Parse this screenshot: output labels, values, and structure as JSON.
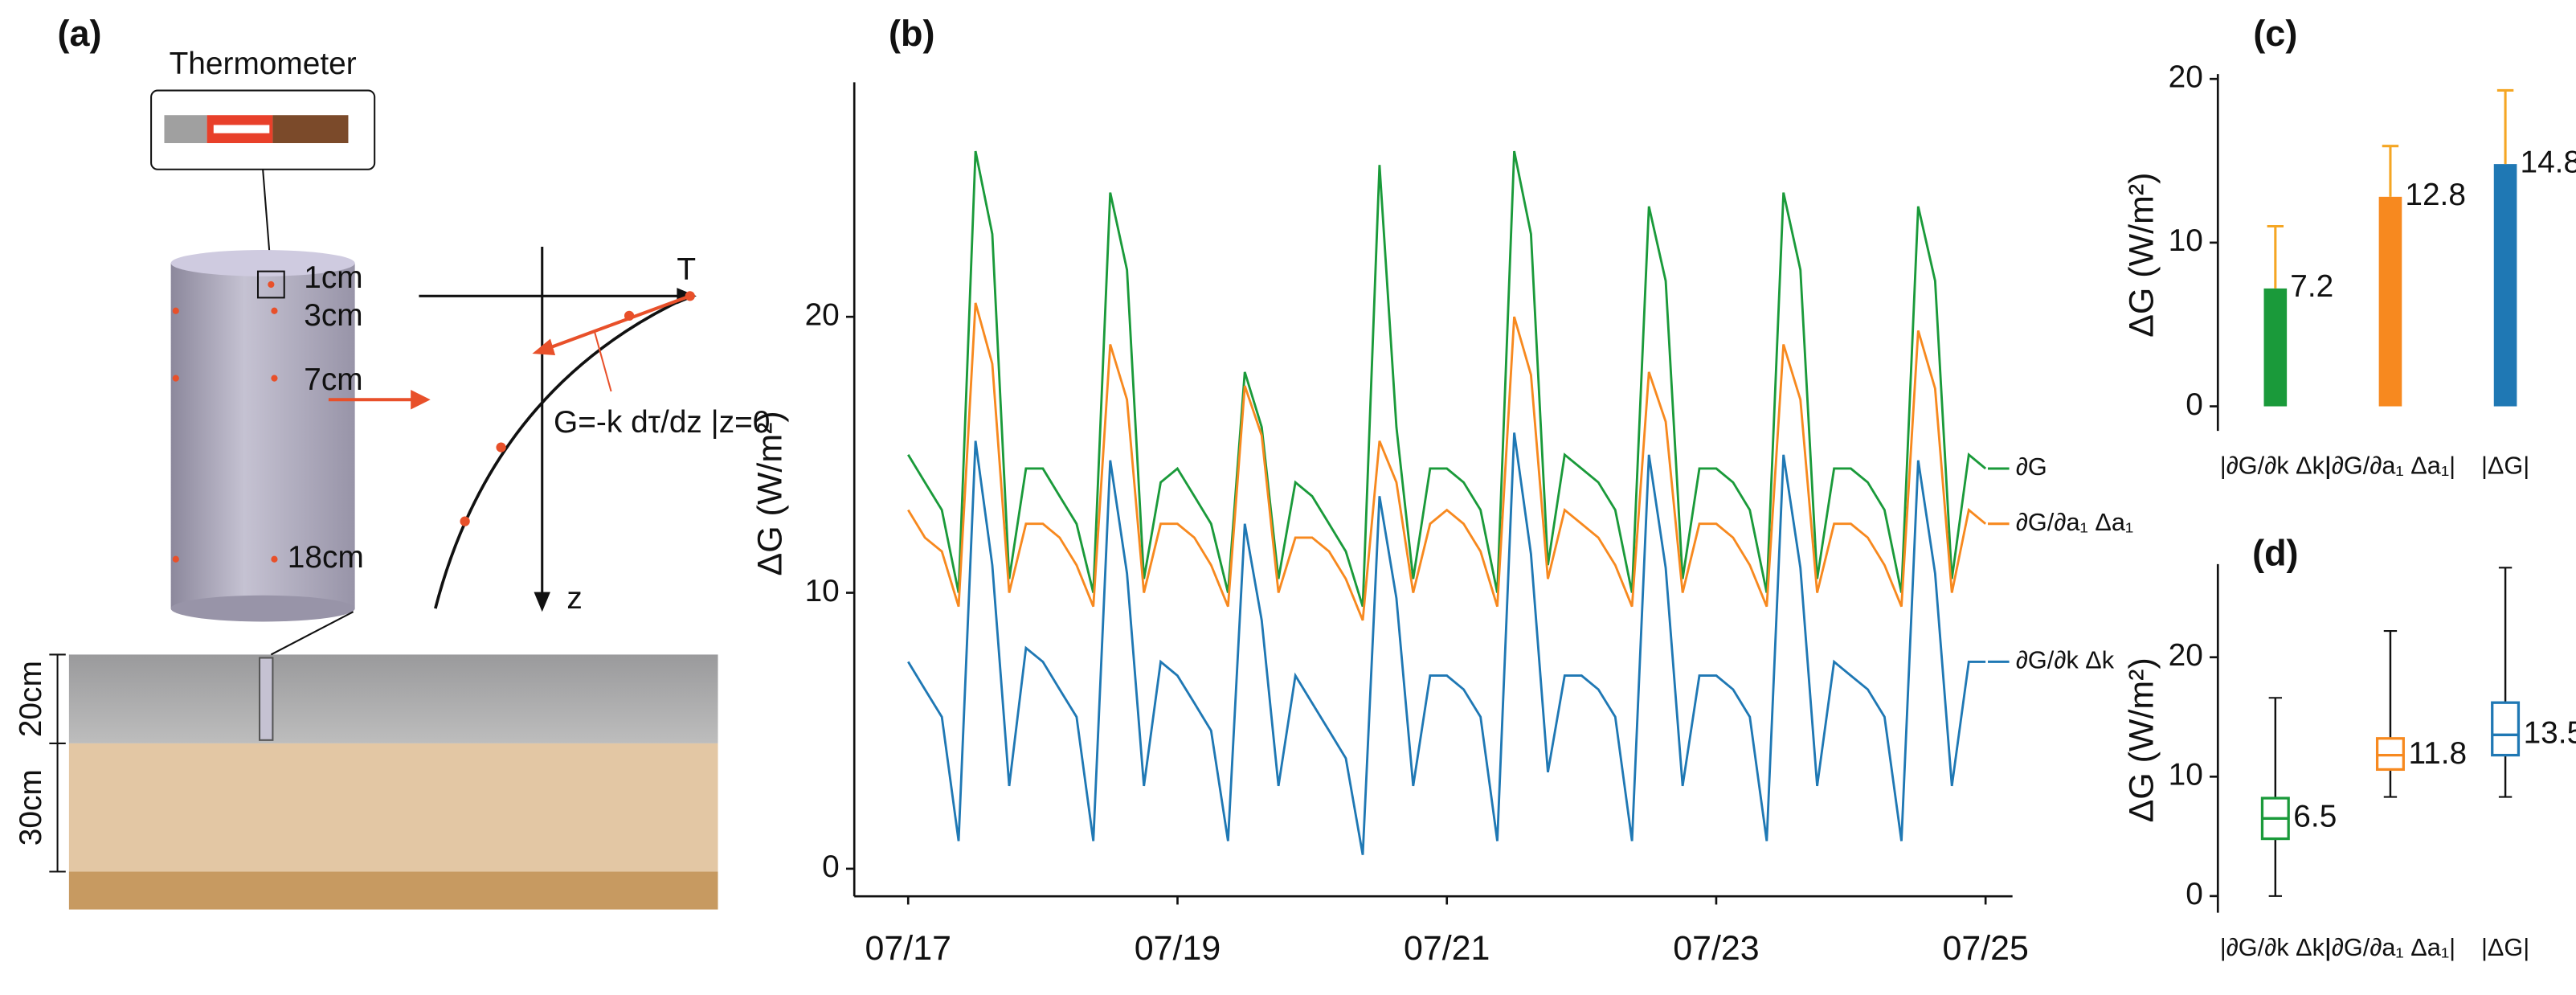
{
  "diagram": {
    "panel": "(a)",
    "instrument": "Thermometer",
    "depth_1": "1cm",
    "depth_3": "3cm",
    "depth_7": "7cm",
    "depth_18": "18cm",
    "layer_top": "20cm",
    "layer_bottom": "30cm",
    "axis_t": "T",
    "axis_z": "z",
    "equation": "G=-k dτ/dz |z=0"
  },
  "chart_data": [
    {
      "type": "line",
      "panel": "(b)",
      "ylabel": "ΔG (W/m²)",
      "x": [
        0,
        0.125,
        0.25,
        0.375,
        0.5,
        0.625,
        0.75,
        0.875,
        1,
        1.125,
        1.25,
        1.375,
        1.5,
        1.625,
        1.75,
        1.875,
        2,
        2.125,
        2.25,
        2.375,
        2.5,
        2.625,
        2.75,
        2.875,
        3,
        3.125,
        3.25,
        3.375,
        3.5,
        3.625,
        3.75,
        3.875,
        4,
        4.125,
        4.25,
        4.375,
        4.5,
        4.625,
        4.75,
        4.875,
        5,
        5.125,
        5.25,
        5.375,
        5.5,
        5.625,
        5.75,
        5.875,
        6,
        6.125,
        6.25,
        6.375,
        6.5,
        6.625,
        6.75,
        6.875,
        7,
        7.125,
        7.25,
        7.375,
        7.5,
        7.625,
        7.75,
        7.875,
        8
      ],
      "xlim": [
        -0.4,
        8.2
      ],
      "xticks": [
        {
          "value": 0,
          "label": "07/17"
        },
        {
          "value": 2,
          "label": "07/19"
        },
        {
          "value": 4,
          "label": "07/21"
        },
        {
          "value": 6,
          "label": "07/23"
        },
        {
          "value": 8,
          "label": "07/25"
        }
      ],
      "ylim": [
        -1,
        28.5
      ],
      "yticks": [
        0,
        10,
        20
      ],
      "series": [
        {
          "name": "∂G",
          "color": "#1a9a3a",
          "values": [
            15,
            14,
            13,
            10,
            26,
            23,
            10.5,
            14.5,
            14.5,
            13.5,
            12.5,
            10,
            24.5,
            21.7,
            10.5,
            14,
            14.5,
            13.5,
            12.5,
            10,
            18,
            16,
            10.5,
            14,
            13.5,
            12.5,
            11.5,
            9.5,
            25.5,
            16,
            10.5,
            14.5,
            14.5,
            14,
            13,
            10,
            26,
            23,
            11,
            15,
            14.5,
            14,
            13,
            10,
            24,
            21.3,
            10.5,
            14.5,
            14.5,
            14,
            13,
            10,
            24.5,
            21.7,
            10.5,
            14.5,
            14.5,
            14,
            13,
            10,
            24,
            21.3,
            10.5,
            15,
            14.5
          ]
        },
        {
          "name": "∂G/∂a₁ Δa₁",
          "color": "#f7891f",
          "values": [
            13,
            12,
            11.5,
            9.5,
            20.5,
            18.3,
            10,
            12.5,
            12.5,
            12,
            11,
            9.5,
            19,
            17,
            10,
            12.5,
            12.5,
            12,
            11,
            9.5,
            17.5,
            15.7,
            10,
            12,
            12,
            11.5,
            10.5,
            9,
            15.5,
            14,
            10,
            12.5,
            13,
            12.5,
            11.5,
            9.5,
            20,
            17.9,
            10.5,
            13,
            12.5,
            12,
            11,
            9.5,
            18,
            16.2,
            10,
            12.5,
            12.5,
            12,
            11,
            9.5,
            19,
            17,
            10,
            12.5,
            12.5,
            12,
            11,
            9.5,
            19.5,
            17.4,
            10,
            13,
            12.5
          ]
        },
        {
          "name": "∂G/∂k Δk",
          "color": "#1f78b4",
          "values": [
            7.5,
            6.5,
            5.5,
            1,
            15.5,
            11,
            3,
            8,
            7.5,
            6.5,
            5.5,
            1,
            14.8,
            10.7,
            3,
            7.5,
            7,
            6,
            5,
            1,
            12.5,
            9,
            3,
            7,
            6,
            5,
            4,
            0.5,
            13.5,
            9.8,
            3,
            7,
            7,
            6.5,
            5.5,
            1,
            15.8,
            11.4,
            3.5,
            7,
            7,
            6.5,
            5.5,
            1,
            15,
            10.9,
            3,
            7,
            7,
            6.5,
            5.5,
            1,
            15,
            10.9,
            3,
            7.5,
            7,
            6.5,
            5.5,
            1,
            14.8,
            10.7,
            3,
            7.5,
            7.5
          ]
        }
      ]
    },
    {
      "type": "bar",
      "panel": "(c)",
      "ylabel": "ΔG (W/m²)",
      "categories": [
        "|∂G/∂k Δk|",
        "|∂G/∂a₁ Δa₁|",
        "|ΔG|"
      ],
      "values": [
        7.2,
        12.8,
        14.8
      ],
      "errors": [
        3.8,
        3.1,
        4.5
      ],
      "colors": [
        "#1a9a3a",
        "#f7891f",
        "#1f78b4"
      ],
      "error_color": "#f5a623",
      "ylim": [
        -1.5,
        20.3
      ],
      "yticks": [
        0,
        10,
        20
      ]
    },
    {
      "type": "box",
      "panel": "(d)",
      "ylabel": "ΔG (W/m²)",
      "categories": [
        "|∂G/∂k Δk|",
        "|∂G/∂a₁ Δa₁|",
        "|ΔG|"
      ],
      "colors": [
        "#1a9a3a",
        "#f7891f",
        "#1f78b4"
      ],
      "min": [
        0,
        8.3,
        8.3
      ],
      "q1": [
        4.8,
        10.6,
        11.8
      ],
      "median": [
        6.5,
        11.8,
        13.5
      ],
      "q3": [
        8.2,
        13.2,
        16.2
      ],
      "max": [
        16.6,
        22.2,
        27.5
      ],
      "ylim": [
        -1.4,
        27.8
      ],
      "yticks": [
        0,
        10,
        20
      ]
    }
  ]
}
